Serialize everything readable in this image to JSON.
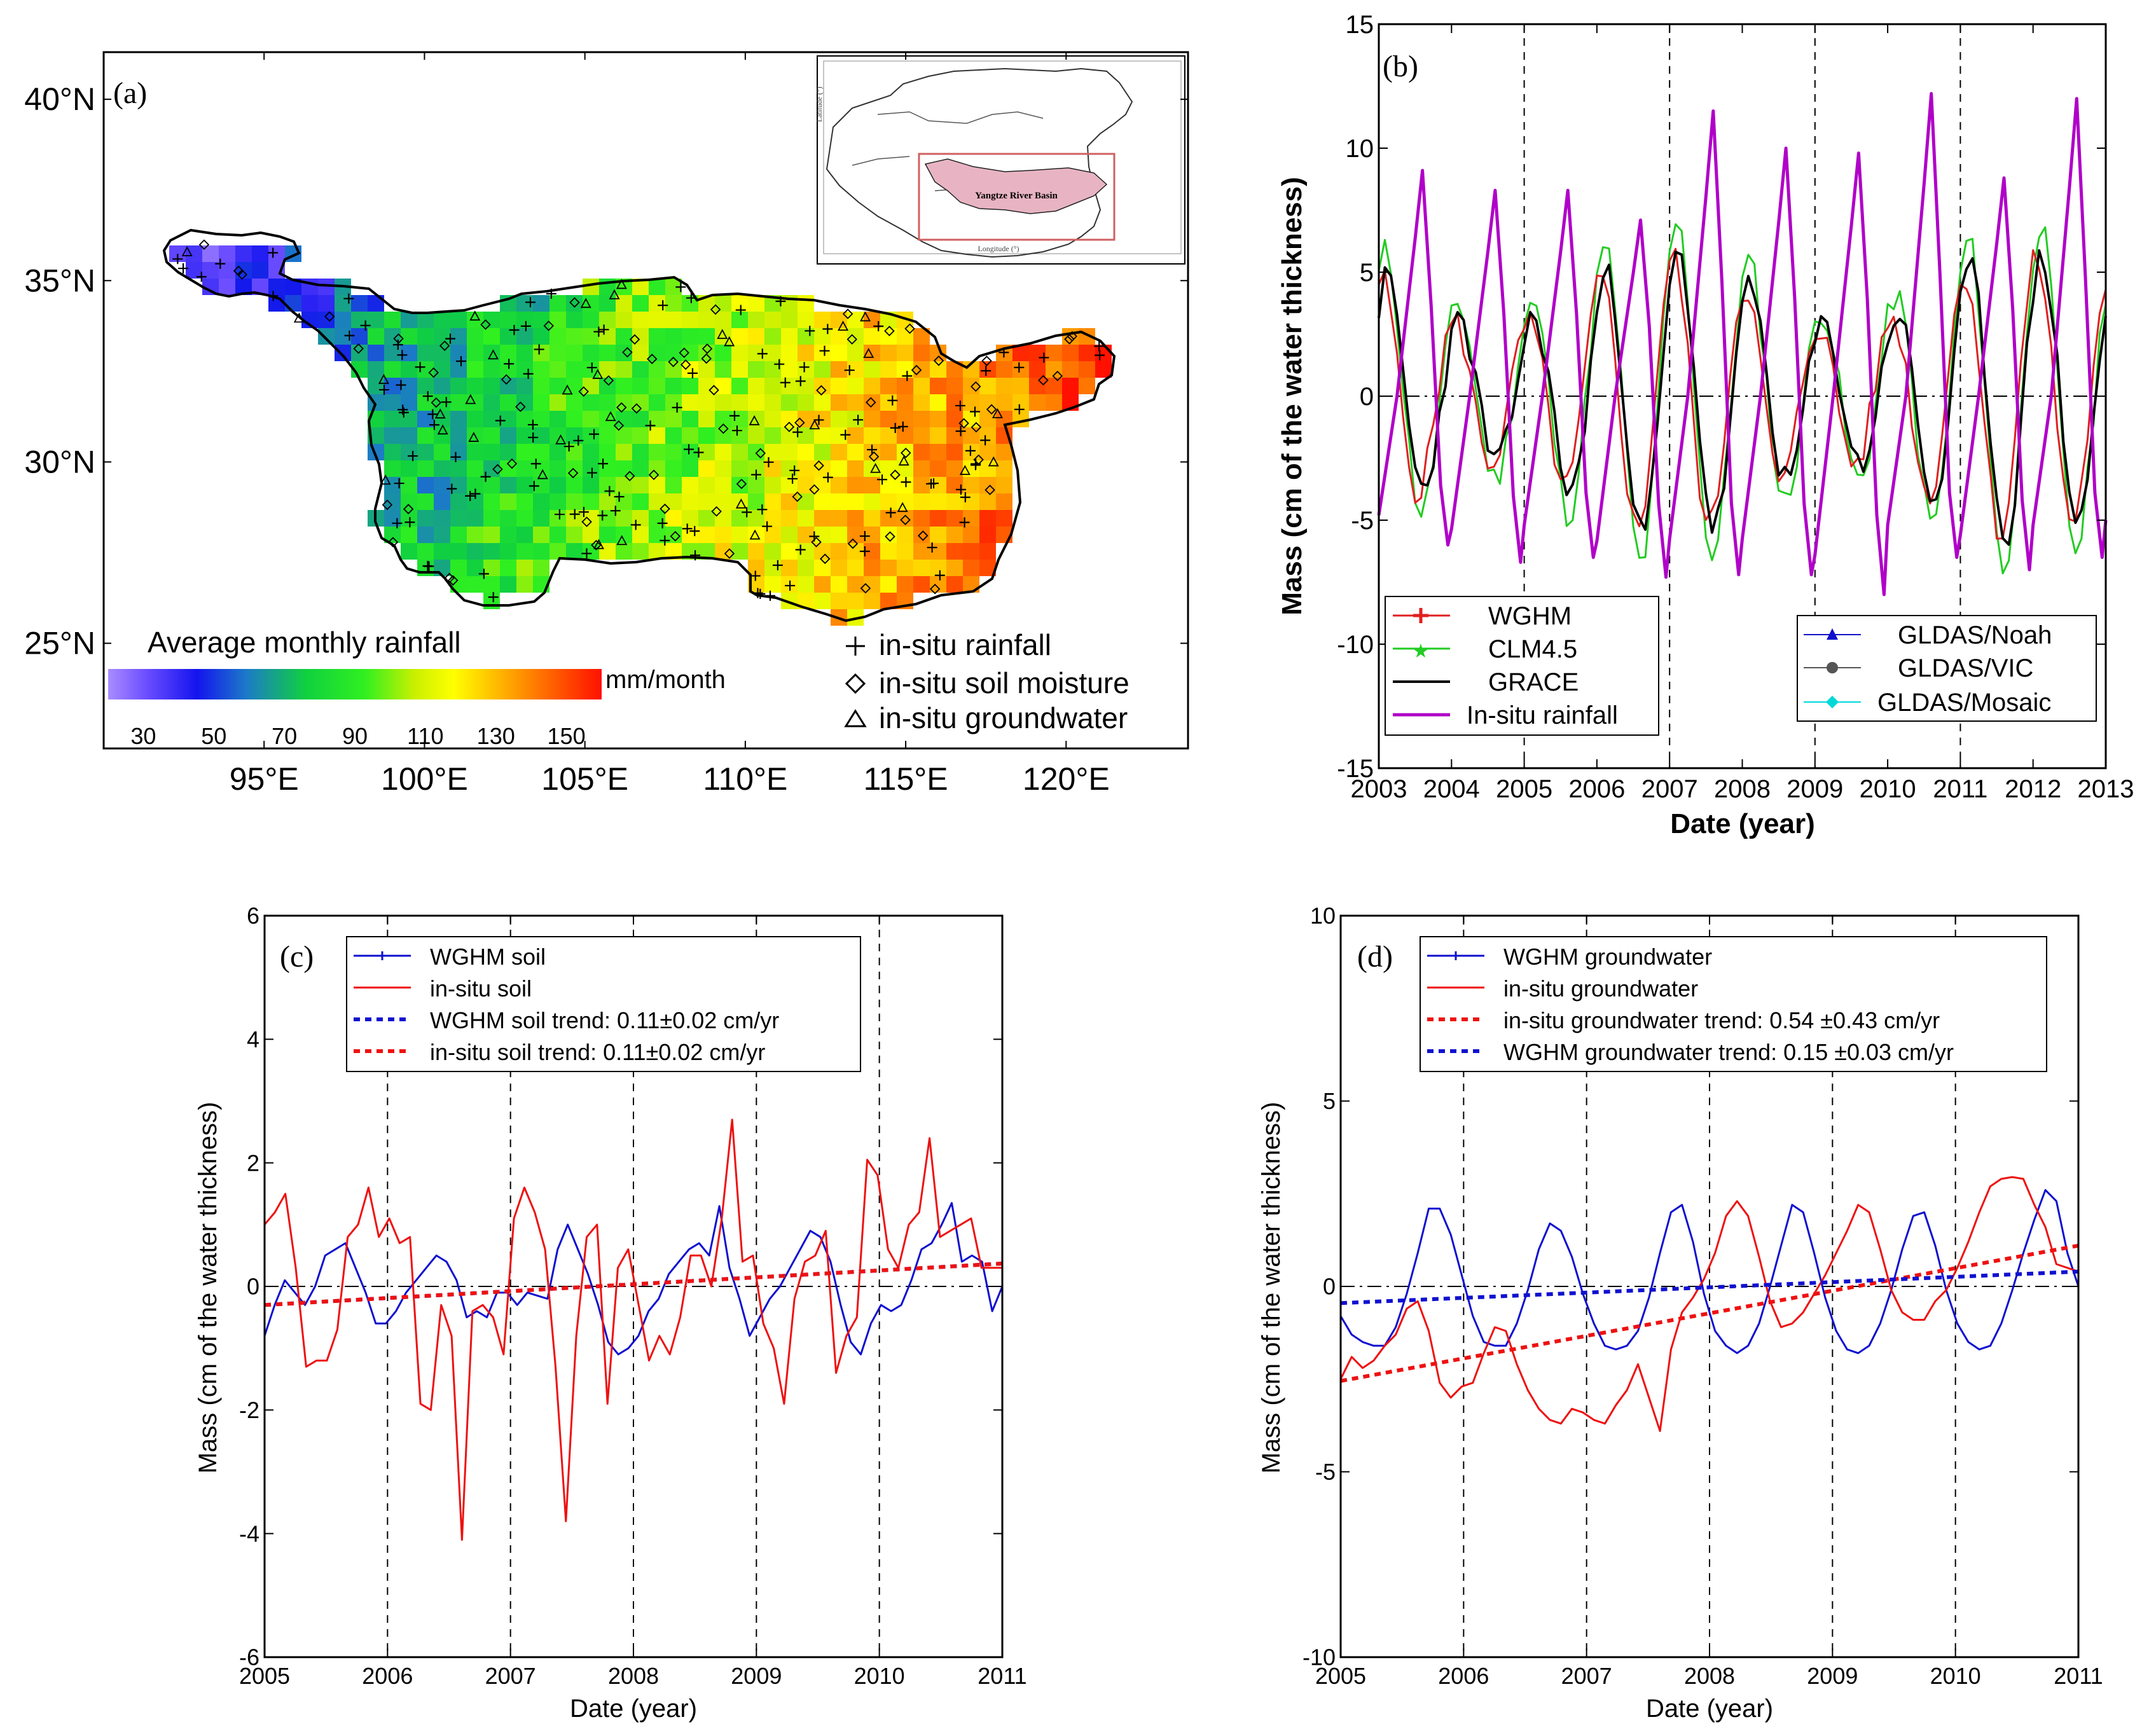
{
  "chart_data": [
    {
      "id": "a",
      "type": "heatmap",
      "panel_label": "(a)",
      "title": "Average monthly rainfall",
      "colorbar_unit": "mm/month",
      "colorbar_ticks": [
        "30",
        "50",
        "70",
        "90",
        "110",
        "130",
        "150"
      ],
      "colorbar_range": [
        20,
        160
      ],
      "x_ticks": [
        "95°E",
        "100°E",
        "105°E",
        "110°E",
        "115°E",
        "120°E"
      ],
      "x_tick_values": [
        95,
        100,
        105,
        110,
        115,
        120
      ],
      "y_ticks": [
        "40°N",
        "35°N",
        "30°N",
        "25°N"
      ],
      "y_tick_values": [
        40,
        35,
        30,
        25
      ],
      "xlim": [
        90,
        123.8
      ],
      "ylim": [
        22.1,
        41.3
      ],
      "legend": [
        "in-situ rainfall",
        "in-situ soil moisture",
        "in-situ groundwater"
      ],
      "inset_label": "Yangtze River Basin",
      "colors": {
        "low": "#8a5cff",
        "mid": "#20e020",
        "high": "#ff1a00"
      }
    },
    {
      "id": "b",
      "type": "line",
      "panel_label": "(b)",
      "xlabel": "Date (year)",
      "ylabel": "Mass (cm of the water thickness)",
      "xlim": [
        2003,
        2013
      ],
      "ylim": [
        -15,
        15
      ],
      "x_ticks": [
        "2003",
        "2004",
        "2005",
        "2006",
        "2007",
        "2008",
        "2009",
        "2010",
        "2011",
        "2012",
        "2013"
      ],
      "y_ticks": [
        "-15",
        "-10",
        "-5",
        "0",
        "5",
        "10",
        "15"
      ],
      "vlines": [
        2005,
        2007,
        2009,
        2011
      ],
      "legend_left": [
        "WGHM",
        "CLM4.5",
        "GRACE",
        "In-situ rainfall"
      ],
      "legend_right": [
        "GLDAS/Noah",
        "GLDAS/VIC",
        "GLDAS/Mosaic"
      ],
      "series": [
        {
          "name": "WGHM",
          "color": "#e02020",
          "marker": "plus",
          "amp": 4.9,
          "phase": 0.55
        },
        {
          "name": "CLM4.5",
          "color": "#22cc22",
          "marker": "star",
          "amp": 6.1,
          "phase": 0.6
        },
        {
          "name": "GRACE",
          "color": "#000000",
          "marker": "none",
          "amp": 5.0,
          "phase": 0.62
        },
        {
          "name": "In-situ rainfall",
          "color": "#b000c8",
          "marker": "none",
          "peaks": [
            9.1,
            8.3,
            8.3,
            7.1,
            11.5,
            10.0,
            9.8,
            12.2,
            8.8,
            12.0
          ],
          "troughs": [
            -6.0,
            -6.7,
            -6.5,
            -7.3,
            -7.2,
            -7.2,
            -8.0,
            -6.5,
            -7.0,
            -6.5
          ]
        },
        {
          "name": "GLDAS/Noah",
          "color": "#1010cc",
          "marker": "triangle"
        },
        {
          "name": "GLDAS/VIC",
          "color": "#555555",
          "marker": "circle"
        },
        {
          "name": "GLDAS/Mosaic",
          "color": "#00d8d8",
          "marker": "diamond"
        }
      ]
    },
    {
      "id": "c",
      "type": "line",
      "panel_label": "(c)",
      "xlabel": "Date (year)",
      "ylabel": "Mass (cm of the water thickness)",
      "xlim": [
        2005,
        2011
      ],
      "ylim": [
        -6,
        6
      ],
      "x_ticks": [
        "2005",
        "2006",
        "2007",
        "2008",
        "2009",
        "2010",
        "2011"
      ],
      "y_ticks": [
        "-6",
        "-4",
        "-2",
        "0",
        "2",
        "4",
        "6"
      ],
      "vlines": [
        2006,
        2007,
        2008,
        2009,
        2010
      ],
      "legend": [
        "WGHM soil",
        "in-situ soil",
        "WGHM soil trend: 0.11±0.02 cm/yr",
        "in-situ soil trend: 0.11±0.02 cm/yr"
      ],
      "series": [
        {
          "name": "WGHM soil",
          "color": "#1010d0",
          "values": [
            -0.8,
            -0.3,
            0.1,
            -0.1,
            -0.3,
            0.0,
            0.5,
            0.6,
            0.7,
            0.3,
            -0.1,
            -0.6,
            -0.6,
            -0.4,
            -0.1,
            0.1,
            0.3,
            0.5,
            0.4,
            0.1,
            -0.5,
            -0.4,
            -0.5,
            -0.1,
            -0.1,
            -0.3,
            -0.1,
            -0.15,
            -0.2,
            0.6,
            1.0,
            0.6,
            0.2,
            -0.3,
            -0.9,
            -1.1,
            -1.0,
            -0.8,
            -0.4,
            -0.2,
            0.2,
            0.4,
            0.6,
            0.7,
            0.5,
            1.3,
            0.3,
            -0.2,
            -0.8,
            -0.5,
            -0.2,
            0.0,
            0.3,
            0.6,
            0.9,
            0.8,
            0.4,
            -0.3,
            -0.9,
            -1.1,
            -0.6,
            -0.3,
            -0.4,
            -0.3,
            0.1,
            0.6,
            0.7,
            1.0,
            1.35,
            0.4,
            0.5,
            0.4,
            -0.4,
            0.0
          ]
        },
        {
          "name": "in-situ soil",
          "color": "#ee1111",
          "values": [
            1.0,
            1.2,
            1.5,
            0.3,
            -1.3,
            -1.2,
            -1.2,
            -0.7,
            0.8,
            1.0,
            1.6,
            0.8,
            1.1,
            0.7,
            0.8,
            -1.9,
            -2.0,
            -0.3,
            -0.8,
            -4.1,
            -0.4,
            -0.3,
            -0.5,
            -1.1,
            1.1,
            1.6,
            1.2,
            0.6,
            -1.3,
            -3.8,
            -0.8,
            0.8,
            1.0,
            -1.9,
            0.3,
            0.6,
            -0.3,
            -1.2,
            -0.8,
            -1.1,
            -0.5,
            0.5,
            0.5,
            0.0,
            1.1,
            2.7,
            0.4,
            0.5,
            -0.6,
            -1.0,
            -1.9,
            -0.2,
            0.4,
            0.5,
            0.9,
            -1.4,
            -0.8,
            -0.5,
            2.05,
            1.8,
            0.6,
            0.3,
            1.0,
            1.2,
            2.4,
            0.8,
            0.9,
            1.0,
            1.1,
            0.3,
            0.3,
            0.3
          ]
        },
        {
          "name": "WGHM soil trend",
          "color": "#1010d0",
          "dashed": true,
          "start": -0.3,
          "end": 0.37
        },
        {
          "name": "in-situ soil trend",
          "color": "#ee1111",
          "dashed": true,
          "start": -0.3,
          "end": 0.37
        }
      ]
    },
    {
      "id": "d",
      "type": "line",
      "panel_label": "(d)",
      "xlabel": "Date (year)",
      "ylabel": "Mass (cm of the water thickness)",
      "xlim": [
        2005,
        2011
      ],
      "ylim": [
        -10,
        10
      ],
      "x_ticks": [
        "2005",
        "2006",
        "2007",
        "2008",
        "2009",
        "2010",
        "2011"
      ],
      "y_ticks": [
        "-10",
        "-5",
        "0",
        "5",
        "10"
      ],
      "vlines": [
        2006,
        2007,
        2008,
        2009,
        2010
      ],
      "legend": [
        "WGHM groundwater",
        "in-situ groundwater",
        "in-situ groundwater trend: 0.54 ±0.43 cm/yr",
        "WGHM groundwater trend: 0.15 ±0.03 cm/yr"
      ],
      "series": [
        {
          "name": "WGHM groundwater",
          "color": "#1010d0",
          "values": [
            -0.8,
            -1.3,
            -1.5,
            -1.6,
            -1.6,
            -1.1,
            -0.2,
            0.9,
            2.1,
            2.1,
            1.4,
            0.3,
            -0.8,
            -1.5,
            -1.6,
            -1.6,
            -1.0,
            -0.1,
            1.0,
            1.7,
            1.5,
            0.8,
            -0.2,
            -1.0,
            -1.6,
            -1.7,
            -1.6,
            -1.2,
            -0.3,
            0.9,
            2.0,
            2.2,
            1.2,
            -0.2,
            -1.2,
            -1.6,
            -1.8,
            -1.6,
            -1.0,
            0.0,
            1.1,
            2.2,
            2.0,
            0.9,
            -0.3,
            -1.2,
            -1.7,
            -1.8,
            -1.6,
            -1.0,
            -0.1,
            1.0,
            1.9,
            2.0,
            1.1,
            -0.1,
            -1.0,
            -1.5,
            -1.7,
            -1.6,
            -1.0,
            -0.1,
            0.9,
            1.8,
            2.6,
            2.3,
            0.9,
            0.0
          ]
        },
        {
          "name": "in-situ groundwater",
          "color": "#ee1111",
          "values": [
            -2.5,
            -1.9,
            -2.2,
            -2.0,
            -1.6,
            -1.3,
            -0.6,
            -0.4,
            -1.2,
            -2.6,
            -3.0,
            -2.7,
            -2.6,
            -1.8,
            -1.1,
            -1.2,
            -2.1,
            -2.8,
            -3.3,
            -3.6,
            -3.7,
            -3.3,
            -3.4,
            -3.6,
            -3.7,
            -3.2,
            -2.8,
            -2.1,
            -3.0,
            -3.9,
            -1.7,
            -0.7,
            -0.3,
            0.2,
            0.9,
            1.9,
            2.3,
            1.9,
            0.8,
            -0.4,
            -1.1,
            -1.0,
            -0.7,
            -0.2,
            0.3,
            0.9,
            1.5,
            2.2,
            2.0,
            1.0,
            -0.1,
            -0.7,
            -0.9,
            -0.9,
            -0.4,
            -0.1,
            0.5,
            1.2,
            2.0,
            2.7,
            2.9,
            2.95,
            2.9,
            2.2,
            1.6,
            0.6,
            0.5,
            0.4
          ]
        },
        {
          "name": "in-situ groundwater trend",
          "color": "#ee1111",
          "dashed": true,
          "start": -2.55,
          "end": 1.1
        },
        {
          "name": "WGHM groundwater trend",
          "color": "#1010d0",
          "dashed": true,
          "start": -0.45,
          "end": 0.4
        }
      ]
    }
  ]
}
